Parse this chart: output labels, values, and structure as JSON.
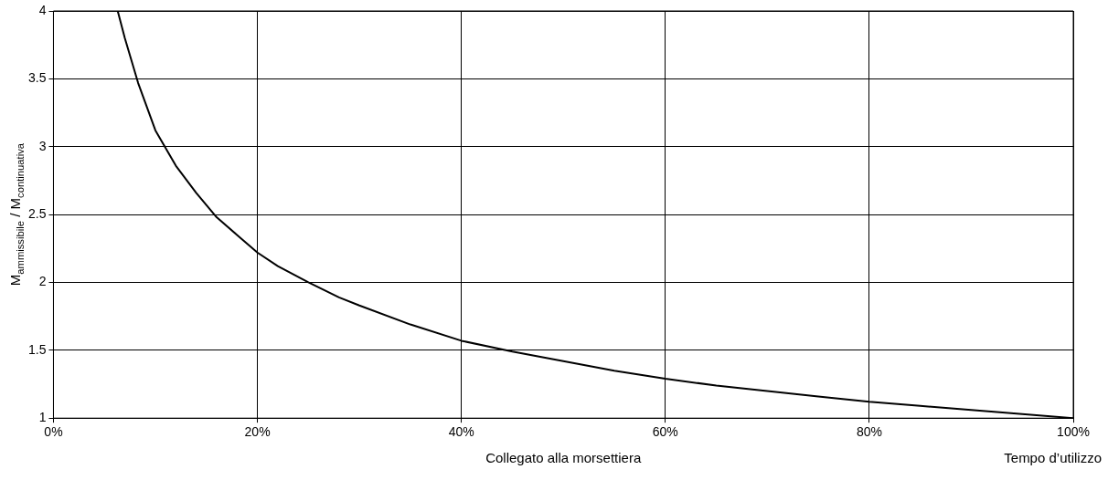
{
  "chart_data": {
    "type": "line",
    "xlabel": "Collegato alla morsettiera",
    "ylabel": "M$_{ammissibile}$ / M$_{continuativa}$",
    "annotations": [
      "Tempo d’utilizzo"
    ],
    "series": [
      {
        "color": "#000000",
        "x": [
          6.3,
          7,
          8.3,
          10,
          12,
          14,
          16,
          18,
          20,
          22,
          25,
          28,
          30,
          35,
          40,
          45,
          50,
          55,
          60,
          65,
          70,
          75,
          80,
          85,
          90,
          95,
          100
        ],
        "values": [
          4.0,
          3.8,
          3.47,
          3.12,
          2.86,
          2.66,
          2.48,
          2.35,
          2.22,
          2.12,
          2.0,
          1.89,
          1.83,
          1.69,
          1.57,
          1.49,
          1.42,
          1.35,
          1.29,
          1.24,
          1.2,
          1.16,
          1.12,
          1.09,
          1.06,
          1.03,
          1.0
        ]
      }
    ],
    "xlim": [
      0,
      100
    ],
    "xticks": [
      {
        "value": 0,
        "label": "0%"
      },
      {
        "value": 20,
        "label": "20%"
      },
      {
        "value": 40,
        "label": "40%"
      },
      {
        "value": 60,
        "label": "60%"
      },
      {
        "value": 80,
        "label": "80%"
      },
      {
        "value": 100,
        "label": "100%"
      }
    ],
    "ylim": [
      1,
      4
    ],
    "yticks": [
      1,
      1.5,
      2,
      2.5,
      3,
      3.5,
      4
    ],
    "grid": true,
    "marker": "none",
    "line_style": "solid"
  }
}
